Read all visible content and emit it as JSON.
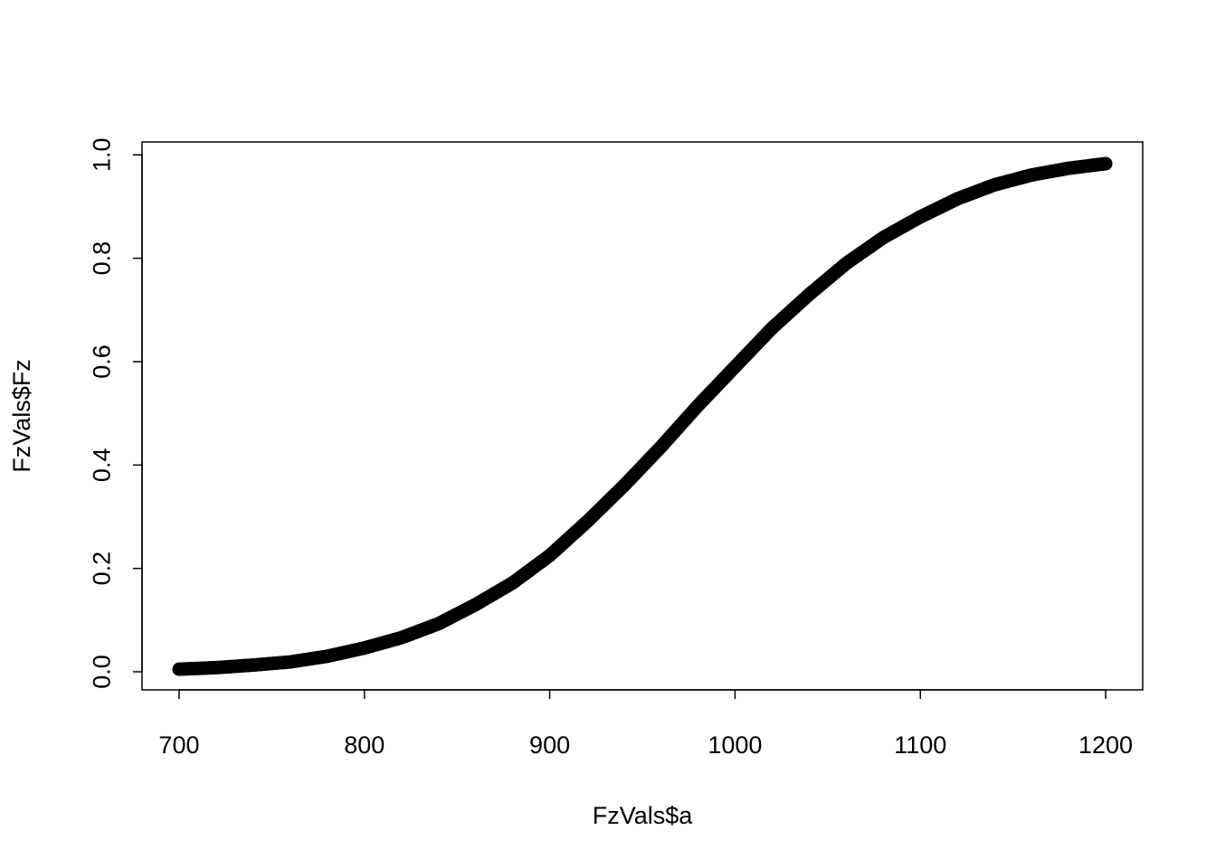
{
  "chart_data": {
    "type": "scatter",
    "title": "",
    "xlabel": "FzVals$a",
    "ylabel": "FzVals$Fz",
    "xlim": [
      680,
      1220
    ],
    "ylim": [
      -0.035,
      1.025
    ],
    "x_ticks": [
      "700",
      "800",
      "900",
      "1000",
      "1100",
      "1200"
    ],
    "y_ticks": [
      "0.0",
      "0.2",
      "0.4",
      "0.6",
      "0.8",
      "1.0"
    ],
    "grid": false,
    "legend": "none",
    "marker": "open-circle",
    "series_color": "#000000",
    "x": [
      700,
      720,
      740,
      760,
      780,
      800,
      820,
      840,
      860,
      880,
      900,
      920,
      940,
      960,
      980,
      1000,
      1020,
      1040,
      1060,
      1080,
      1100,
      1120,
      1140,
      1160,
      1180,
      1200
    ],
    "y": [
      0.005,
      0.008,
      0.013,
      0.019,
      0.03,
      0.046,
      0.066,
      0.093,
      0.13,
      0.172,
      0.225,
      0.29,
      0.36,
      0.435,
      0.515,
      0.59,
      0.665,
      0.73,
      0.79,
      0.84,
      0.88,
      0.915,
      0.942,
      0.961,
      0.974,
      0.983
    ]
  }
}
